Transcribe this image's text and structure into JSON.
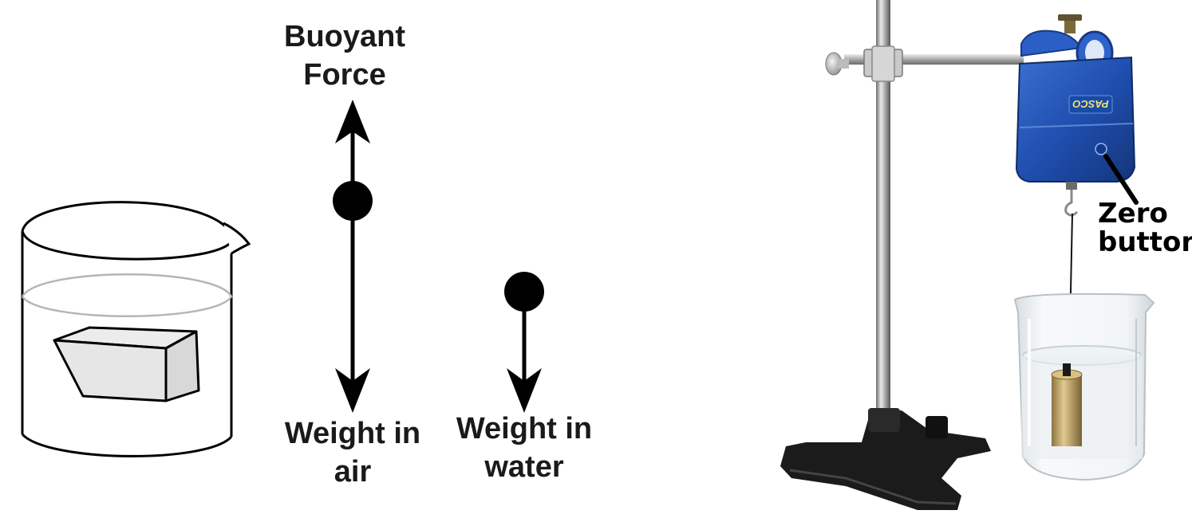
{
  "diagram": {
    "labels": {
      "buoyant_force_line1": "Buoyant",
      "buoyant_force_line2": "Force",
      "weight_air_line1": "Weight in",
      "weight_air_line2": "air",
      "weight_water_line1": "Weight in",
      "weight_water_line2": "water"
    }
  },
  "photo": {
    "labels": {
      "zero_line1": "Zero",
      "zero_line2": "button"
    },
    "sensor_brand": "PASCO",
    "colors": {
      "sensor_blue": "#1f4fb0",
      "stand_black": "#1b1b1b",
      "brass": "#b59a5a"
    }
  }
}
